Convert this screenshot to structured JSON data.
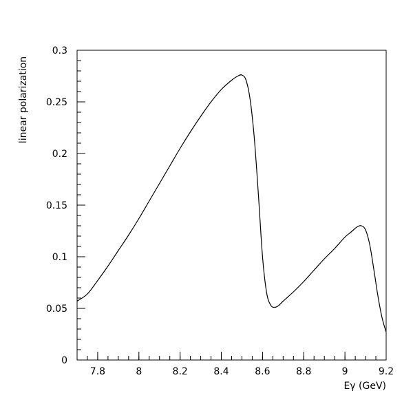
{
  "chart_data": {
    "type": "line",
    "title": "",
    "xlabel": "Eγ (GeV)",
    "ylabel": "linear polarization",
    "xlim": [
      7.7,
      9.2
    ],
    "ylim": [
      0,
      0.3
    ],
    "grid": false,
    "legend": "none",
    "xticks": [
      {
        "value": 7.8,
        "label": "7.8"
      },
      {
        "value": 8.0,
        "label": "8"
      },
      {
        "value": 8.2,
        "label": "8.2"
      },
      {
        "value": 8.4,
        "label": "8.4"
      },
      {
        "value": 8.6,
        "label": "8.6"
      },
      {
        "value": 8.8,
        "label": "8.8"
      },
      {
        "value": 9.0,
        "label": "9"
      },
      {
        "value": 9.2,
        "label": "9.2"
      }
    ],
    "yticks": [
      {
        "value": 0,
        "label": "0"
      },
      {
        "value": 0.05,
        "label": "0.05"
      },
      {
        "value": 0.1,
        "label": "0.1"
      },
      {
        "value": 0.15,
        "label": "0.15"
      },
      {
        "value": 0.2,
        "label": "0.2"
      },
      {
        "value": 0.25,
        "label": "0.25"
      },
      {
        "value": 0.3,
        "label": "0.3"
      }
    ],
    "series": [
      {
        "color": "#000000",
        "x": [
          7.7,
          7.75,
          7.8,
          7.85,
          7.9,
          7.95,
          8.0,
          8.05,
          8.1,
          8.15,
          8.2,
          8.25,
          8.3,
          8.35,
          8.4,
          8.45,
          8.48,
          8.5,
          8.52,
          8.54,
          8.56,
          8.58,
          8.6,
          8.62,
          8.64,
          8.66,
          8.68,
          8.7,
          8.75,
          8.8,
          8.85,
          8.9,
          8.95,
          9.0,
          9.03,
          9.06,
          9.08,
          9.1,
          9.12,
          9.14,
          9.16,
          9.18,
          9.2
        ],
        "y": [
          0.057,
          0.064,
          0.077,
          0.091,
          0.106,
          0.121,
          0.137,
          0.154,
          0.171,
          0.188,
          0.205,
          0.221,
          0.236,
          0.25,
          0.262,
          0.271,
          0.275,
          0.276,
          0.271,
          0.252,
          0.215,
          0.16,
          0.1,
          0.065,
          0.053,
          0.051,
          0.053,
          0.057,
          0.066,
          0.076,
          0.087,
          0.098,
          0.108,
          0.119,
          0.124,
          0.129,
          0.13,
          0.126,
          0.112,
          0.088,
          0.062,
          0.041,
          0.027
        ]
      }
    ]
  }
}
